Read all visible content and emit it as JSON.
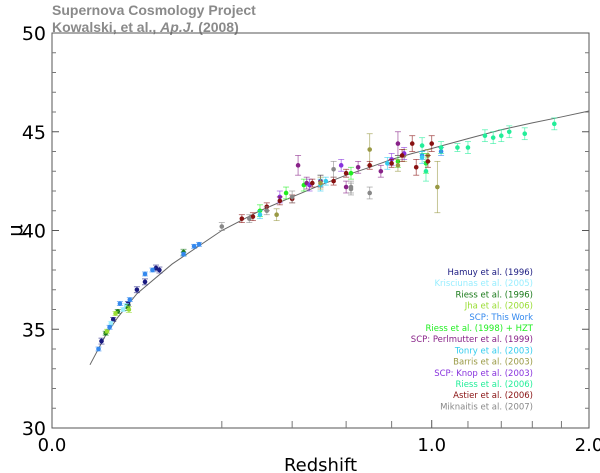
{
  "title": {
    "line1": "Supernova Cosmology Project",
    "line2_prefix": "Kowalski, et al., ",
    "line2_journal": "Ap.J.",
    "line2_suffix": " (2008)"
  },
  "chart_data": {
    "type": "scatter",
    "xlabel": "Redshift",
    "ylabel": "μ",
    "xscale": "sqrt",
    "xlim": [
      0.0,
      2.0
    ],
    "ylim": [
      30,
      50
    ],
    "xticks": [
      "0.0",
      "1.0",
      "2.0"
    ],
    "xtick_values": [
      0.0,
      1.0,
      2.0
    ],
    "xminor_ticks": [
      0.2,
      0.4,
      0.6,
      0.8,
      1.2,
      1.4,
      1.6,
      1.8
    ],
    "yticks": [
      "30",
      "35",
      "40",
      "45",
      "50"
    ],
    "ytick_values": [
      30,
      35,
      40,
      45,
      50
    ],
    "grid": false,
    "legend_placement": "bottom-right",
    "model_curve": [
      [
        0.01,
        33.2
      ],
      [
        0.02,
        34.7
      ],
      [
        0.03,
        35.6
      ],
      [
        0.05,
        36.8
      ],
      [
        0.1,
        38.3
      ],
      [
        0.2,
        40.0
      ],
      [
        0.3,
        41.0
      ],
      [
        0.4,
        41.7
      ],
      [
        0.5,
        42.3
      ],
      [
        0.6,
        42.8
      ],
      [
        0.7,
        43.2
      ],
      [
        0.8,
        43.6
      ],
      [
        0.9,
        43.9
      ],
      [
        1.0,
        44.15
      ],
      [
        1.2,
        44.65
      ],
      [
        1.4,
        45.1
      ],
      [
        1.6,
        45.45
      ],
      [
        1.8,
        45.75
      ],
      [
        2.0,
        46.05
      ]
    ],
    "series": [
      {
        "name": "Hamuy et al. (1996)",
        "color": "#1a1a80",
        "points": [
          [
            0.017,
            34.4,
            0.15
          ],
          [
            0.026,
            35.5,
            0.1
          ],
          [
            0.04,
            36.3,
            0.1
          ],
          [
            0.05,
            37.0,
            0.15
          ],
          [
            0.06,
            37.4,
            0.15
          ],
          [
            0.075,
            38.1,
            0.15
          ],
          [
            0.08,
            38.0,
            0.15
          ]
        ]
      },
      {
        "name": "Krisciunas et al. (2005)",
        "color": "#99eeff",
        "points": [
          [
            0.024,
            35.3,
            0.1
          ],
          [
            0.035,
            36.0,
            0.1
          ],
          [
            0.038,
            36.2,
            0.1
          ]
        ]
      },
      {
        "name": "Riess et al. (1996)",
        "color": "#1a7a1a",
        "points": [
          [
            0.02,
            34.8,
            0.1
          ],
          [
            0.03,
            35.9,
            0.1
          ],
          [
            0.04,
            36.1,
            0.15
          ],
          [
            0.12,
            38.9,
            0.15
          ]
        ]
      },
      {
        "name": "Jha et al. (2006)",
        "color": "#99dd33",
        "points": [
          [
            0.021,
            34.9,
            0.1
          ],
          [
            0.028,
            35.8,
            0.1
          ],
          [
            0.041,
            36.0,
            0.15
          ]
        ]
      },
      {
        "name": "SCP: This Work",
        "color": "#3388ee",
        "points": [
          [
            0.015,
            34.0,
            0.1
          ],
          [
            0.023,
            35.1,
            0.1
          ],
          [
            0.032,
            36.3,
            0.1
          ],
          [
            0.042,
            36.5,
            0.1
          ],
          [
            0.06,
            37.8,
            0.1
          ],
          [
            0.07,
            38.0,
            0.1
          ],
          [
            0.12,
            38.8,
            0.1
          ],
          [
            0.14,
            39.2,
            0.1
          ],
          [
            0.15,
            39.3,
            0.1
          ],
          [
            0.95,
            43.8,
            0.2
          ],
          [
            1.05,
            44.0,
            0.2
          ]
        ]
      },
      {
        "name": "Riess et al. (1998) + HZT",
        "color": "#22ee22",
        "points": [
          [
            0.3,
            41.0,
            0.3
          ],
          [
            0.38,
            41.9,
            0.3
          ],
          [
            0.44,
            42.3,
            0.3
          ],
          [
            0.5,
            42.5,
            0.3
          ],
          [
            0.62,
            42.9,
            0.3
          ],
          [
            0.83,
            43.5,
            0.3
          ],
          [
            0.97,
            43.4,
            0.5
          ]
        ]
      },
      {
        "name": "SCP:  Perlmutter et al. (1999)",
        "color": "#882288",
        "points": [
          [
            0.42,
            43.3,
            0.5
          ],
          [
            0.45,
            42.4,
            0.3
          ],
          [
            0.5,
            42.5,
            0.3
          ],
          [
            0.6,
            42.2,
            0.3
          ],
          [
            0.65,
            43.2,
            0.3
          ],
          [
            0.75,
            43.0,
            0.3
          ],
          [
            0.83,
            44.4,
            0.6
          ]
        ]
      },
      {
        "name": "Tonry et al. (2003)",
        "color": "#33ccee",
        "points": [
          [
            0.3,
            40.8,
            0.2
          ],
          [
            0.5,
            42.3,
            0.3
          ],
          [
            0.52,
            42.5,
            0.2
          ],
          [
            0.78,
            43.4,
            0.3
          ],
          [
            0.95,
            43.7,
            0.3
          ]
        ]
      },
      {
        "name": "Barris et al. (2003)",
        "color": "#999944",
        "points": [
          [
            0.35,
            40.8,
            0.3
          ],
          [
            0.5,
            42.4,
            0.3
          ],
          [
            0.7,
            44.1,
            0.8
          ],
          [
            0.83,
            43.3,
            0.3
          ],
          [
            0.86,
            43.8,
            0.3
          ],
          [
            0.98,
            43.8,
            0.3
          ],
          [
            1.03,
            42.2,
            1.3
          ]
        ]
      },
      {
        "name": "SCP: Knop et al. (2003)",
        "color": "#8833dd",
        "points": [
          [
            0.36,
            41.7,
            0.3
          ],
          [
            0.46,
            42.3,
            0.3
          ],
          [
            0.58,
            43.3,
            0.3
          ],
          [
            0.8,
            43.6,
            0.3
          ],
          [
            0.86,
            43.9,
            0.3
          ]
        ]
      },
      {
        "name": "Riess et al. (2006)",
        "color": "#22ee99",
        "points": [
          [
            0.95,
            44.3,
            0.4
          ],
          [
            0.97,
            43.0,
            0.5
          ],
          [
            1.05,
            44.2,
            0.3
          ],
          [
            1.14,
            44.2,
            0.2
          ],
          [
            1.2,
            44.2,
            0.3
          ],
          [
            1.3,
            44.8,
            0.3
          ],
          [
            1.35,
            44.7,
            0.3
          ],
          [
            1.4,
            44.8,
            0.3
          ],
          [
            1.45,
            45.0,
            0.3
          ],
          [
            1.55,
            44.9,
            0.3
          ],
          [
            1.75,
            45.4,
            0.3
          ]
        ]
      },
      {
        "name": "Astier et al. (2006)",
        "color": "#881111",
        "points": [
          [
            0.25,
            40.6,
            0.2
          ],
          [
            0.28,
            40.7,
            0.2
          ],
          [
            0.32,
            41.2,
            0.2
          ],
          [
            0.36,
            41.5,
            0.2
          ],
          [
            0.4,
            41.6,
            0.2
          ],
          [
            0.47,
            42.4,
            0.2
          ],
          [
            0.55,
            42.5,
            0.2
          ],
          [
            0.6,
            42.9,
            0.2
          ],
          [
            0.7,
            43.3,
            0.2
          ],
          [
            0.8,
            43.4,
            0.2
          ],
          [
            0.85,
            43.8,
            0.3
          ],
          [
            0.9,
            44.4,
            0.4
          ],
          [
            0.92,
            43.2,
            0.4
          ],
          [
            0.98,
            43.5,
            0.3
          ],
          [
            1.0,
            44.4,
            0.4
          ]
        ]
      },
      {
        "name": "Miknaitis et al. (2007)",
        "color": "#888888",
        "points": [
          [
            0.2,
            40.2,
            0.2
          ],
          [
            0.27,
            40.6,
            0.2
          ],
          [
            0.32,
            41.0,
            0.2
          ],
          [
            0.4,
            41.7,
            0.3
          ],
          [
            0.55,
            43.1,
            0.4
          ],
          [
            0.62,
            42.1,
            0.3
          ],
          [
            0.62,
            42.2,
            0.3
          ],
          [
            0.7,
            41.9,
            0.3
          ]
        ]
      }
    ]
  }
}
